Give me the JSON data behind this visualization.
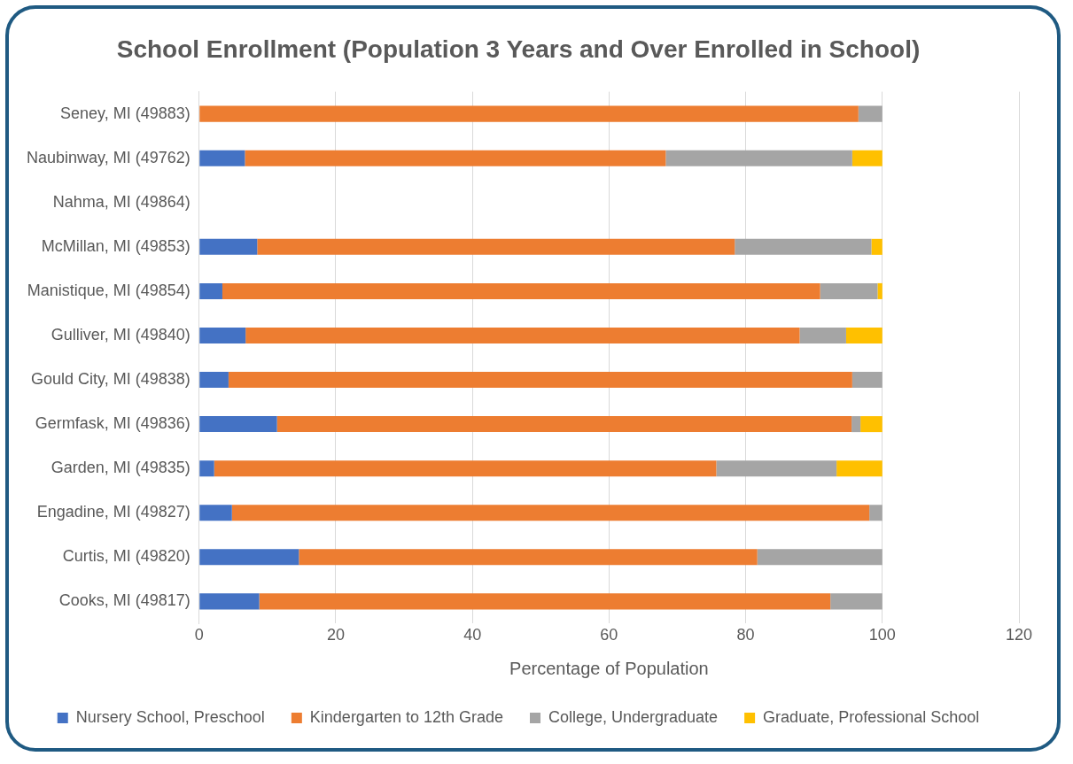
{
  "chart_data": {
    "type": "bar",
    "orientation": "horizontal",
    "stacked": true,
    "title": "School Enrollment (Population 3 Years and Over Enrolled in School)",
    "xlabel": "Percentage of Population",
    "categories": [
      "Seney, MI (49883)",
      "Naubinway, MI (49762)",
      "Nahma, MI (49864)",
      "McMillan, MI (49853)",
      "Manistique, MI (49854)",
      "Gulliver, MI (49840)",
      "Gould City, MI (49838)",
      "Germfask, MI (49836)",
      "Garden, MI (49835)",
      "Engadine, MI (49827)",
      "Curtis, MI (49820)",
      "Cooks, MI (49817)"
    ],
    "series": [
      {
        "name": "Nursery School, Preschool",
        "color": "#4472c4",
        "values": [
          0,
          6.7,
          null,
          8.5,
          3.4,
          6.8,
          4.3,
          11.4,
          2.2,
          4.8,
          14.6,
          8.8
        ]
      },
      {
        "name": "Kindergarten to 12th Grade",
        "color": "#ed7d31",
        "values": [
          96.5,
          61.6,
          null,
          69.9,
          87.5,
          81.1,
          91.3,
          84.1,
          73.5,
          93.3,
          67.1,
          83.6
        ]
      },
      {
        "name": "College, Undergraduate",
        "color": "#a5a5a5",
        "values": [
          3.5,
          27.3,
          null,
          20.0,
          8.4,
          6.8,
          4.4,
          1.3,
          17.6,
          1.9,
          18.3,
          7.6
        ]
      },
      {
        "name": "Graduate, Professional School",
        "color": "#ffc000",
        "values": [
          0,
          4.4,
          null,
          1.6,
          0.7,
          5.3,
          0,
          3.2,
          6.7,
          0,
          0,
          0
        ]
      }
    ],
    "xlim": [
      0,
      120
    ],
    "xticks": [
      0,
      20,
      40,
      60,
      80,
      100,
      120
    ],
    "grid": "x",
    "legend": "bottom"
  }
}
